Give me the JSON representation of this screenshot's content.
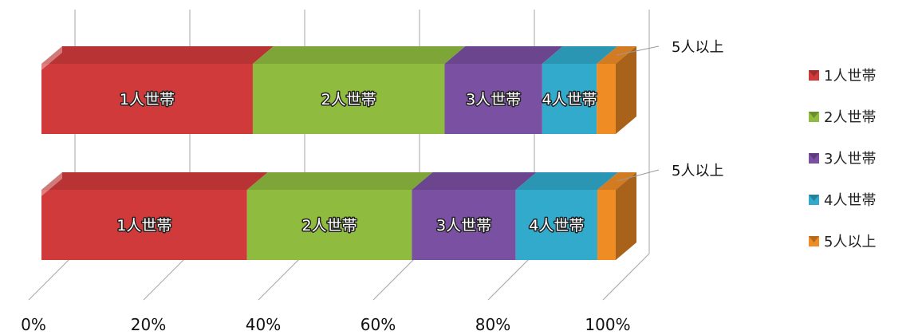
{
  "chart_data": {
    "type": "bar",
    "orientation": "horizontal",
    "stacked": "100%",
    "rendering": "3d",
    "x_ticks": [
      "0%",
      "20%",
      "40%",
      "60%",
      "80%",
      "100%"
    ],
    "xlim": [
      0,
      100
    ],
    "grid": true,
    "legend_position": "right",
    "categories": [
      "",
      ""
    ],
    "series": [
      {
        "name": "1人世帯",
        "color": "#d13a3a",
        "values": [
          36.8,
          35.8
        ],
        "label": "1人世帯"
      },
      {
        "name": "2人世帯",
        "color": "#8fbb3e",
        "values": [
          33.4,
          28.7
        ],
        "label": "2人世帯"
      },
      {
        "name": "3人世帯",
        "color": "#7a50a2",
        "values": [
          17.0,
          18.1
        ],
        "label": "3人世帯"
      },
      {
        "name": "4人世帯",
        "color": "#31aacb",
        "values": [
          9.5,
          14.2
        ],
        "label": "4人世帯"
      },
      {
        "name": "5人以上",
        "color": "#f08c24",
        "values": [
          3.3,
          3.2
        ],
        "label": "5人以上"
      }
    ],
    "callout_labels": [
      "5人以上",
      "5人以上"
    ]
  }
}
